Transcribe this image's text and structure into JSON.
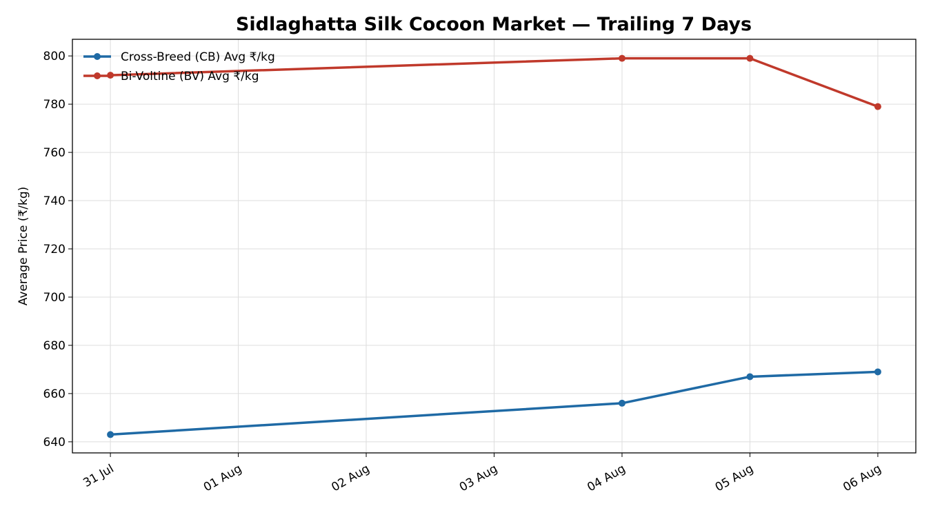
{
  "chart_data": {
    "type": "line",
    "title": "Sidlaghatta Silk Cocoon Market — Trailing 7 Days",
    "y_label": "Average Price (₹/kg)",
    "x": [
      "31 Jul",
      "04 Aug",
      "05 Aug",
      "06 Aug"
    ],
    "xticks": [
      "31 Jul",
      "01 Aug",
      "02 Aug",
      "03 Aug",
      "04 Aug",
      "05 Aug",
      "06 Aug"
    ],
    "series": [
      {
        "name": "Cross-Breed (CB) Avg ₹/kg",
        "color": "#1f6aa5",
        "values": [
          643,
          656,
          667,
          669
        ]
      },
      {
        "name": "Bi-Voltine (BV) Avg ₹/kg",
        "color": "#c0392b",
        "values": [
          792,
          799,
          799,
          779
        ]
      }
    ],
    "ylim": [
      635.4,
      806.9
    ],
    "yticks": [
      640,
      660,
      680,
      700,
      720,
      740,
      760,
      780,
      800
    ],
    "grid": true,
    "legend": "upper-left"
  }
}
